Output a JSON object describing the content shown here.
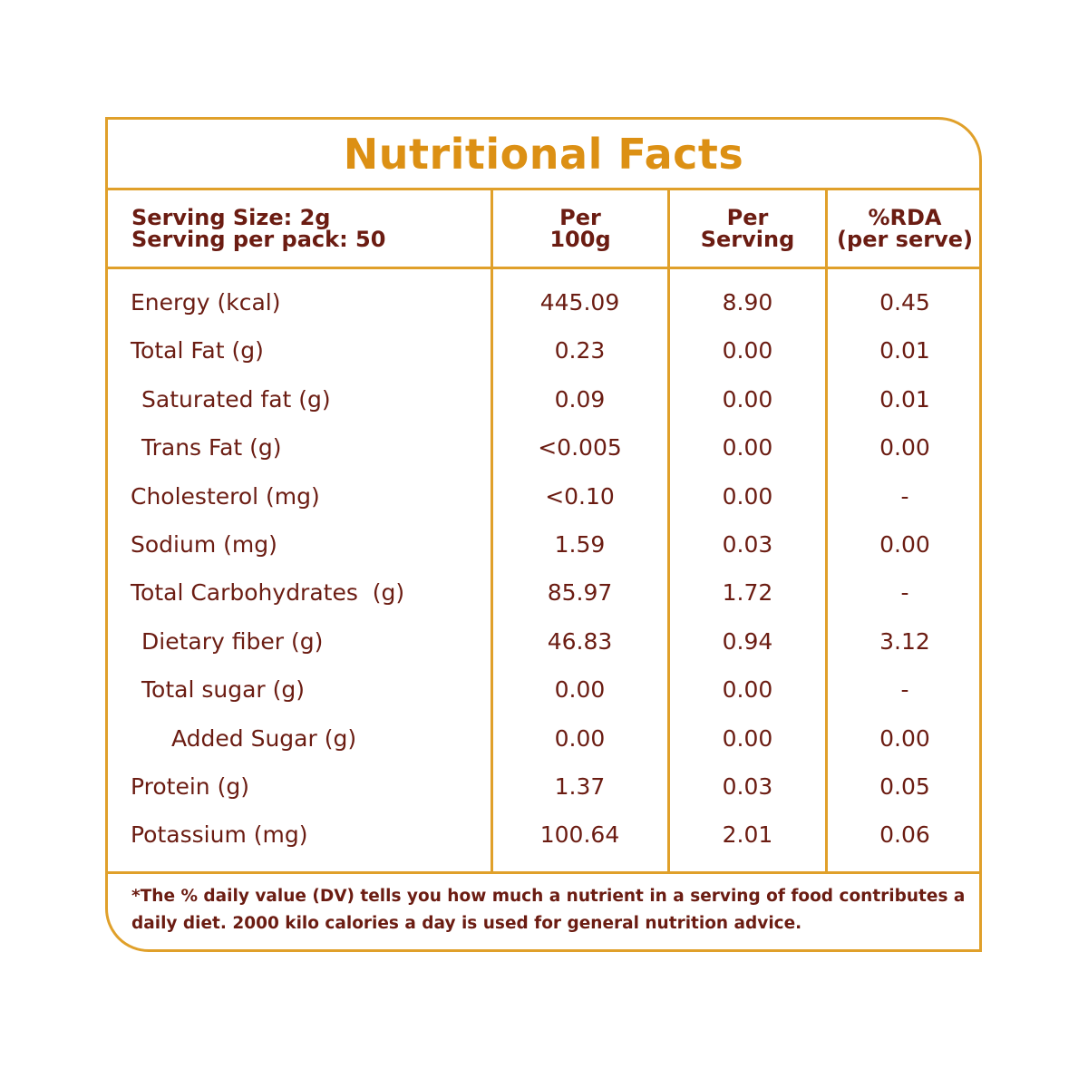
{
  "title": "Nutritional Facts",
  "header": {
    "serving_size": "Serving Size: 2g",
    "serving_per_pack": "Serving per pack: 50",
    "col1_line1": "Per",
    "col1_line2": "100g",
    "col2_line1": "Per",
    "col2_line2": "Serving",
    "col3_line1": "%RDA",
    "col3_line2": "(per serve)"
  },
  "rows": [
    {
      "name": "Energy (kcal)",
      "per100g": "445.09",
      "perServing": "8.90",
      "rda": "0.45"
    },
    {
      "name": "Total Fat (g)",
      "per100g": "0.23",
      "perServing": "0.00",
      "rda": "0.01"
    },
    {
      "name": "Saturated fat (g)",
      "per100g": "0.09",
      "perServing": "0.00",
      "rda": "0.01"
    },
    {
      "name": "Trans Fat (g)",
      "per100g": "<0.005",
      "perServing": "0.00",
      "rda": "0.00"
    },
    {
      "name": "Cholesterol (mg)",
      "per100g": "<0.10",
      "perServing": "0.00",
      "rda": "-"
    },
    {
      "name": "Sodium (mg)",
      "per100g": "1.59",
      "perServing": "0.03",
      "rda": "0.00"
    },
    {
      "name": "Total Carbohydrates  (g)",
      "per100g": "85.97",
      "perServing": "1.72",
      "rda": "-"
    },
    {
      "name": "Dietary fiber (g)",
      "per100g": "46.83",
      "perServing": "0.94",
      "rda": "3.12"
    },
    {
      "name": "Total sugar (g)",
      "per100g": "0.00",
      "perServing": "0.00",
      "rda": "-"
    },
    {
      "name": "Added Sugar (g)",
      "per100g": "0.00",
      "perServing": "0.00",
      "rda": "0.00"
    },
    {
      "name": "Protein (g)",
      "per100g": "1.37",
      "perServing": "0.03",
      "rda": "0.05"
    },
    {
      "name": "Potassium (mg)",
      "per100g": "100.64",
      "perServing": "2.01",
      "rda": "0.06"
    }
  ],
  "footnote": "*The % daily value (DV) tells you how much a nutrient in a serving of food contributes a daily diet. 2000 kilo calories a day is used for general nutrition advice.",
  "colors": {
    "border": "#e0a02a",
    "title": "#dc9014",
    "text": "#6b1c12"
  }
}
